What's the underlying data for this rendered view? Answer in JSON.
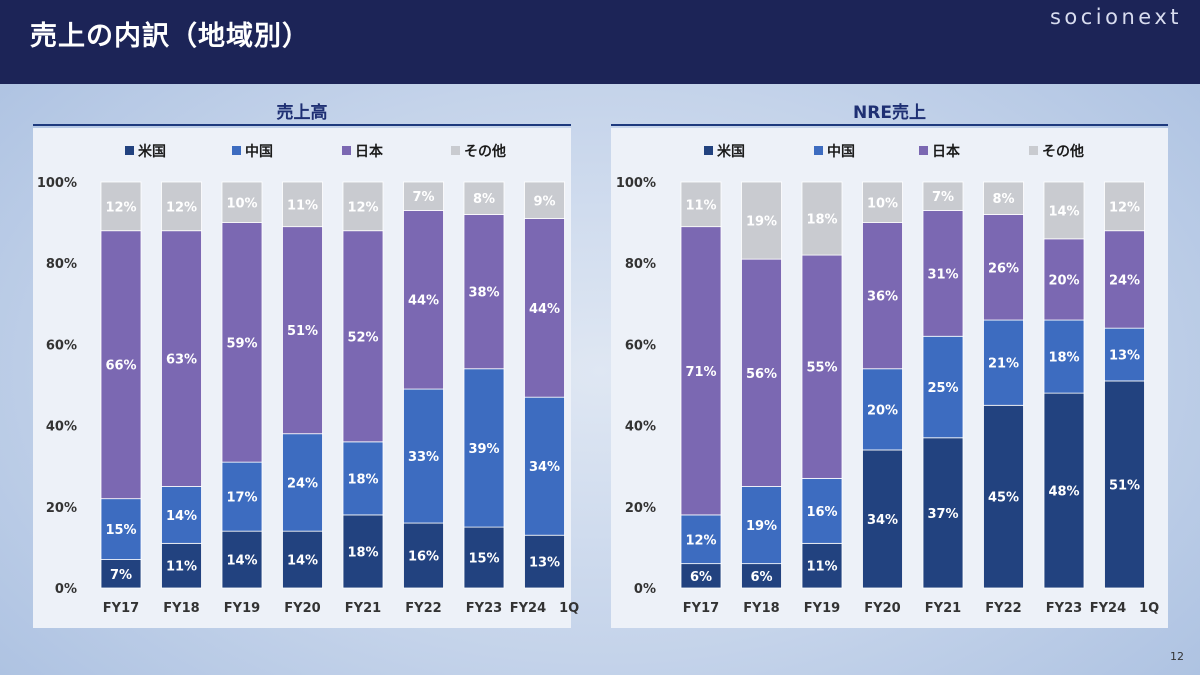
{
  "header": {
    "title": "売上の内訳（地域別）",
    "logo": "socionext"
  },
  "page_number": "12",
  "colors": {
    "us": "#22427f",
    "china": "#3d6cc0",
    "japan": "#7b68b2",
    "other": "#c9cbd0"
  },
  "legend": [
    "米国",
    "中国",
    "日本",
    "その他"
  ],
  "chart_data": [
    {
      "type": "bar",
      "stacked": true,
      "title": "売上高",
      "categories": [
        "FY17",
        "FY18",
        "FY19",
        "FY20",
        "FY21",
        "FY22",
        "FY23",
        "FY24　1Q"
      ],
      "ylim": [
        0,
        100
      ],
      "yticks": [
        "0%",
        "20%",
        "40%",
        "60%",
        "80%",
        "100%"
      ],
      "legend_position": "top",
      "series": [
        {
          "name": "米国",
          "values": [
            7,
            11,
            14,
            14,
            18,
            16,
            15,
            13
          ]
        },
        {
          "name": "中国",
          "values": [
            15,
            14,
            17,
            24,
            18,
            33,
            39,
            34
          ]
        },
        {
          "name": "日本",
          "values": [
            66,
            63,
            59,
            51,
            52,
            44,
            38,
            44
          ]
        },
        {
          "name": "その他",
          "values": [
            12,
            12,
            10,
            11,
            12,
            7,
            8,
            9
          ]
        }
      ]
    },
    {
      "type": "bar",
      "stacked": true,
      "title": "NRE売上",
      "categories": [
        "FY17",
        "FY18",
        "FY19",
        "FY20",
        "FY21",
        "FY22",
        "FY23",
        "FY24　1Q"
      ],
      "ylim": [
        0,
        100
      ],
      "yticks": [
        "0%",
        "20%",
        "40%",
        "60%",
        "80%",
        "100%"
      ],
      "legend_position": "top",
      "series": [
        {
          "name": "米国",
          "values": [
            6,
            6,
            11,
            34,
            37,
            45,
            48,
            51
          ]
        },
        {
          "name": "中国",
          "values": [
            12,
            19,
            16,
            20,
            25,
            21,
            18,
            13
          ]
        },
        {
          "name": "日本",
          "values": [
            71,
            56,
            55,
            36,
            31,
            26,
            20,
            24
          ]
        },
        {
          "name": "その他",
          "values": [
            11,
            19,
            18,
            10,
            7,
            8,
            14,
            12
          ]
        }
      ]
    }
  ]
}
